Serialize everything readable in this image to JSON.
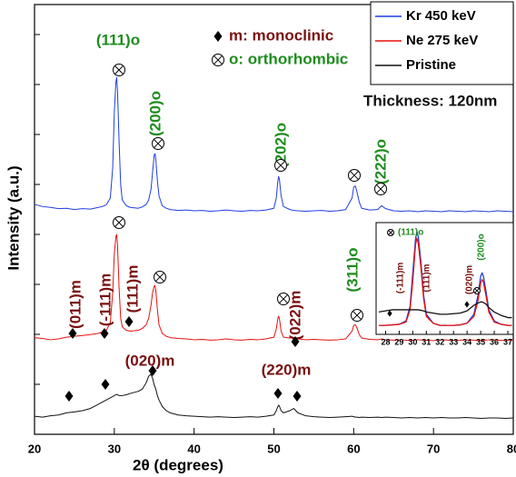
{
  "chart_data": [
    {
      "type": "line",
      "x_label": "2θ (degrees)",
      "y_label": "Intensity (a.u.)",
      "xlim": [
        20,
        80
      ],
      "xticks": [
        20,
        30,
        40,
        50,
        60,
        70,
        80
      ],
      "ylim": [
        0,
        100
      ],
      "x": [
        20,
        21,
        22,
        23,
        24,
        25,
        26,
        27,
        28,
        28.5,
        29,
        29.5,
        29.8,
        30.0,
        30.2,
        30.3,
        30.4,
        30.6,
        30.8,
        31,
        31.5,
        32,
        33,
        33.5,
        34,
        34.3,
        34.6,
        34.8,
        35.0,
        35.1,
        35.2,
        35.4,
        35.6,
        36,
        36.5,
        37,
        38,
        39,
        40,
        41,
        42,
        43,
        44,
        45,
        46,
        47,
        48,
        49,
        50,
        50.3,
        50.5,
        50.6,
        50.7,
        50.9,
        51.2,
        52,
        52.5,
        53,
        54,
        55,
        56,
        57,
        58,
        59,
        59.8,
        60,
        60.2,
        60.4,
        60.7,
        61,
        62,
        63,
        63.5,
        64,
        65,
        66,
        67,
        68,
        69,
        70,
        71,
        72,
        73,
        74,
        75,
        76,
        77,
        78,
        79,
        80
      ],
      "series": [
        {
          "name": "Kr 450 keV",
          "color": "#1f3fe0",
          "values": [
            53.5,
            53,
            52.8,
            52.5,
            52.6,
            52.3,
            52.5,
            52.4,
            52.8,
            53,
            53.4,
            55,
            62,
            75,
            82,
            83,
            80,
            68,
            58,
            54.5,
            53.2,
            52.8,
            52.6,
            52.9,
            53.5,
            54.5,
            57,
            61,
            65,
            65.3,
            64,
            59,
            55.5,
            53.2,
            52.6,
            52.3,
            52.1,
            52.2,
            52,
            52.1,
            51.9,
            52,
            52.2,
            52,
            51.9,
            52.1,
            52,
            52.2,
            52.6,
            55,
            59,
            60,
            59.2,
            55.5,
            53,
            52.3,
            52.1,
            52,
            51.9,
            52,
            52.1,
            51.9,
            52,
            52.3,
            55,
            57.5,
            57.8,
            56.5,
            54,
            52.6,
            52.2,
            52.3,
            53.2,
            52.5,
            52,
            51.9,
            52,
            51.8,
            52,
            51.9,
            51.8,
            52,
            51.9,
            51.8,
            52,
            51.9,
            51.8,
            52,
            51.9,
            51.8
          ]
        },
        {
          "name": "Ne 275 keV",
          "color": "#e81010",
          "values": [
            22.5,
            22.3,
            22,
            22.2,
            22.6,
            22.8,
            23,
            23.2,
            23.5,
            23.8,
            24.2,
            26,
            33,
            42,
            46,
            46.5,
            44,
            34,
            27,
            25,
            24.2,
            24,
            24.2,
            24.6,
            25.5,
            27,
            30,
            33,
            34.5,
            34.6,
            33.5,
            29,
            25.5,
            23.5,
            22.8,
            22.5,
            22.3,
            22.2,
            22,
            22.1,
            21.9,
            22,
            22.2,
            22,
            21.9,
            22.1,
            22,
            22.2,
            22.6,
            24.5,
            27,
            27.5,
            26.8,
            24,
            22.6,
            22.4,
            22.5,
            22.2,
            22,
            22.1,
            22,
            21.9,
            22,
            22.2,
            24,
            25.3,
            25.5,
            24.8,
            23.2,
            22.4,
            22.1,
            22,
            22.2,
            22,
            21.9,
            22,
            21.8,
            22,
            21.9,
            21.8,
            22,
            21.9,
            21.8,
            22,
            21.9,
            21.8,
            22,
            21.9,
            21.8,
            21.9
          ]
        },
        {
          "name": "Pristine",
          "color": "#111111",
          "values": [
            4.2,
            4,
            4.3,
            4.5,
            5,
            5.2,
            5.5,
            6,
            7,
            7.5,
            8,
            8.5,
            8.8,
            9,
            9.2,
            9.3,
            9.2,
            9,
            9,
            9,
            9.2,
            9.5,
            10,
            10.5,
            12,
            13.5,
            14,
            13,
            11.5,
            11,
            10.5,
            9,
            8,
            6.5,
            5.5,
            5,
            4.5,
            4.3,
            4.2,
            4.1,
            4,
            4.1,
            4,
            3.9,
            4,
            4.1,
            4,
            4.2,
            4.5,
            5.5,
            6.5,
            6.8,
            6.5,
            5.5,
            5,
            5.5,
            6,
            5,
            4.3,
            4.1,
            4,
            3.9,
            4,
            4.1,
            4.2,
            4.1,
            4,
            4,
            3.9,
            4,
            3.9,
            4,
            3.9,
            4,
            3.9,
            3.8,
            3.9,
            3.8,
            3.9,
            3.8,
            3.9,
            3.8,
            3.8,
            3.9,
            3.8,
            3.7,
            3.8,
            3.8,
            3.7,
            3.8
          ]
        }
      ],
      "annotations": [
        {
          "text": "(111)o",
          "color": "#1e8c1e"
        },
        {
          "text": "(200)o",
          "color": "#1e8c1e"
        },
        {
          "text": "(202)o",
          "color": "#1e8c1e"
        },
        {
          "text": "(222)o",
          "color": "#1e8c1e"
        },
        {
          "text": "(011)m",
          "color": "#7a1010"
        },
        {
          "text": "(-111)m",
          "color": "#7a1010"
        },
        {
          "text": "(111)m",
          "color": "#7a1010"
        },
        {
          "text": "(022)m",
          "color": "#7a1010"
        },
        {
          "text": "(311)o",
          "color": "#1e8c1e"
        },
        {
          "text": "(020)m",
          "color": "#7a1010"
        },
        {
          "text": "(220)m",
          "color": "#7a1010"
        },
        {
          "text": "m: monoclinic",
          "color": "#7a1010"
        },
        {
          "text": "o: orthorhombic",
          "color": "#1e8c1e"
        },
        {
          "text": "Thickness: 120nm",
          "color": "#111111"
        }
      ]
    },
    {
      "type": "line",
      "xlim": [
        27.3,
        37.4
      ],
      "xticks": [
        28,
        29,
        30,
        31,
        32,
        33,
        34,
        35,
        36,
        37
      ],
      "ylim": [
        0,
        100
      ],
      "x": [
        27.5,
        28,
        28.5,
        29,
        29.5,
        29.8,
        30,
        30.2,
        30.3,
        30.4,
        30.6,
        30.8,
        31,
        31.5,
        32,
        32.5,
        33,
        33.5,
        34,
        34.5,
        34.8,
        35,
        35.1,
        35.2,
        35.4,
        35.6,
        36,
        36.5,
        37,
        37.3
      ],
      "series": [
        {
          "color": "#1f3fe0",
          "values": [
            8,
            8,
            8.5,
            9,
            12,
            25,
            55,
            85,
            92,
            88,
            65,
            35,
            18,
            10,
            8,
            8,
            8,
            8.5,
            10,
            18,
            35,
            52,
            55,
            52,
            38,
            22,
            12,
            9,
            8,
            8
          ]
        },
        {
          "color": "#e81010",
          "values": [
            8,
            8,
            8.5,
            9,
            11,
            22,
            48,
            80,
            86,
            82,
            60,
            32,
            16,
            10,
            8,
            8,
            8,
            8.5,
            10,
            16,
            30,
            46,
            49,
            47,
            34,
            20,
            11,
            9,
            8,
            8
          ]
        },
        {
          "color": "#111111",
          "values": [
            20,
            21,
            22,
            22,
            22,
            22,
            22,
            22,
            22,
            22,
            21.5,
            21,
            20,
            19,
            18,
            18,
            18.5,
            19,
            21,
            26,
            28,
            29,
            29,
            28.5,
            27,
            24,
            20,
            17,
            15,
            15
          ]
        }
      ],
      "annotations": [
        {
          "text": "(111)o",
          "color": "#1e8c1e"
        },
        {
          "text": "(-111)m",
          "color": "#7a1010"
        },
        {
          "text": "(111)m",
          "color": "#7a1010"
        },
        {
          "text": "(020)m",
          "color": "#7a1010"
        },
        {
          "text": "(200)o",
          "color": "#1e8c1e"
        }
      ]
    }
  ]
}
